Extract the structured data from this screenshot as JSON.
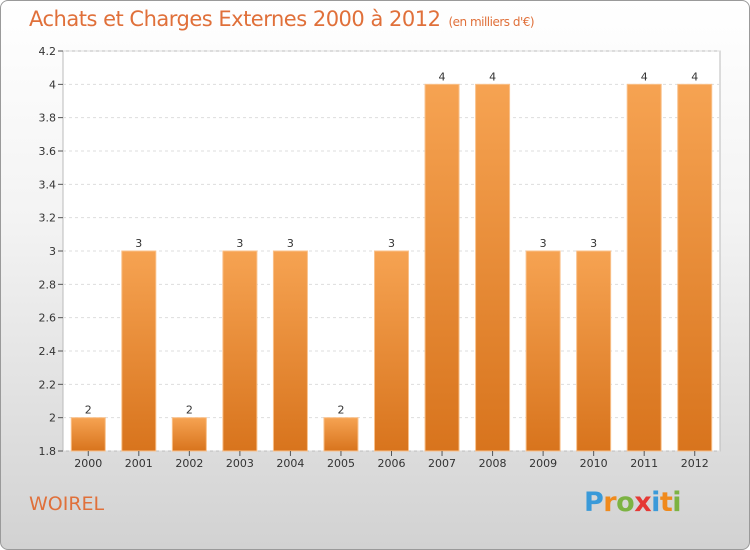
{
  "header": {
    "title": "Achats et Charges Externes 2000 à 2012",
    "subtitle": "(en milliers d'€)"
  },
  "footer": {
    "place": "WOIREL",
    "logo": {
      "letters": [
        "P",
        "r",
        "o",
        "x",
        "i",
        "t",
        "i"
      ],
      "colors": [
        "#3a9ad9",
        "#f08a1c",
        "#7cb342",
        "#e53935",
        "#3a9ad9",
        "#f08a1c",
        "#7cb342"
      ]
    }
  },
  "colors": {
    "title": "#e0703a",
    "bar_top": "#f6a352",
    "bar_bottom": "#d8741d"
  },
  "chart_data": {
    "type": "bar",
    "title": "Achats et Charges Externes 2000 à 2012",
    "subtitle": "(en milliers d'€)",
    "categories": [
      "2000",
      "2001",
      "2002",
      "2003",
      "2004",
      "2005",
      "2006",
      "2007",
      "2008",
      "2009",
      "2010",
      "2011",
      "2012"
    ],
    "values": [
      2,
      3,
      2,
      3,
      3,
      2,
      3,
      4,
      4,
      3,
      3,
      4,
      4
    ],
    "data_labels": [
      "2",
      "3",
      "2",
      "3",
      "3",
      "2",
      "3",
      "4",
      "4",
      "3",
      "3",
      "4",
      "4"
    ],
    "ylim": [
      1.8,
      4.2
    ],
    "yticks": [
      1.8,
      2,
      2.2,
      2.4,
      2.6,
      2.8,
      3,
      3.2,
      3.4,
      3.6,
      3.8,
      4,
      4.2
    ],
    "ytick_labels": [
      "1.8",
      "2",
      "2.2",
      "2.4",
      "2.6",
      "2.8",
      "3",
      "3.2",
      "3.4",
      "3.6",
      "3.8",
      "4",
      "4.2"
    ],
    "grid": true,
    "xlabel": "",
    "ylabel": ""
  }
}
